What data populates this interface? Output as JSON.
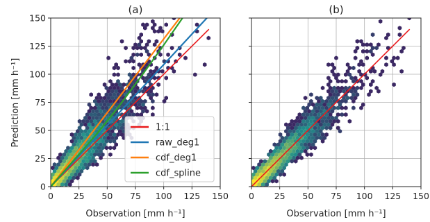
{
  "chart_data": [
    {
      "type": "scatter",
      "title": "(a)",
      "xlabel": "Observation [mm h⁻¹]",
      "ylabel": "Prediction [mm h⁻¹]",
      "xlim": [
        0,
        150
      ],
      "ylim": [
        0,
        150
      ],
      "xticks": [
        0,
        25,
        50,
        75,
        100,
        125,
        150
      ],
      "yticks": [
        0,
        25,
        50,
        75,
        100,
        125,
        150
      ],
      "grid": true,
      "legend_position": "lower-right",
      "density_color_low": "#fde725",
      "density_color_mid": "#21918c",
      "density_color_high": "#440154",
      "series": [
        {
          "name": "1:1",
          "color": "#e8191b",
          "x": [
            0,
            140
          ],
          "y": [
            0,
            140
          ]
        },
        {
          "name": "raw_deg1",
          "color": "#1f77b4",
          "x": [
            0,
            140
          ],
          "y": [
            0,
            152
          ]
        },
        {
          "name": "cdf_deg1",
          "color": "#ff7f0e",
          "x": [
            0,
            118
          ],
          "y": [
            0,
            155
          ]
        },
        {
          "name": "cdf_spline",
          "color": "#2ca02c",
          "x": [
            0,
            20,
            40,
            60,
            80,
            100,
            118
          ],
          "y": [
            0,
            23,
            46,
            71,
            98,
            126,
            152
          ]
        }
      ]
    },
    {
      "type": "scatter",
      "title": "(b)",
      "xlabel": "Observation [mm h⁻¹]",
      "ylabel": "",
      "xlim": [
        0,
        150
      ],
      "ylim": [
        0,
        150
      ],
      "xticks": [
        0,
        25,
        50,
        75,
        100,
        125,
        150
      ],
      "yticks": [
        0,
        25,
        50,
        75,
        100,
        125,
        150
      ],
      "grid": true,
      "series": [
        {
          "name": "",
          "color": "#e8191b",
          "x": [
            0,
            140
          ],
          "y": [
            0,
            140
          ]
        }
      ]
    }
  ]
}
